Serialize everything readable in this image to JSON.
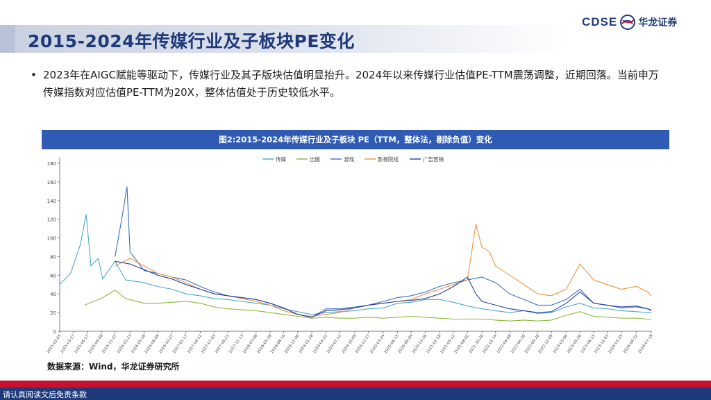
{
  "header": {
    "title": "2015-2024年传媒行业及子板块PE变化",
    "logo_en": "CDSE",
    "logo_cn": "华龙证券",
    "logo_icon": "globe-swirl-icon"
  },
  "bullet": {
    "marker": "•",
    "text": "2023年在AIGC赋能等驱动下，传媒行业及其子版块估值明显抬升。2024年以来传媒行业估值PE-TTM震荡调整，近期回落。当前申万传媒指数对应估值PE-TTM为20X，整体估值处于历史较低水平。"
  },
  "chart_title": "图2:2015-2024年传媒行业及子板块 PE（TTM，整体法，剔除负值）变化",
  "source": "数据来源：Wind，华龙证券研究所",
  "footer": {
    "disclaimer": "请认真阅读文后免责条款"
  },
  "colors": {
    "title": "#1f3a7a",
    "chart_header": "#2f5bb4",
    "footer_red": "#c8102e",
    "footer_blue": "#1f3a7a"
  },
  "chart_data": {
    "type": "line",
    "x_start": "2015-01-05",
    "x_end": "2024-07-19",
    "x_ticks": [
      "2015-01-05",
      "2015-03-27",
      "2015-06-17",
      "2015-09-08",
      "2015-11-27",
      "2016-02-23",
      "2016-05-16",
      "2016-08-04",
      "2016-10-27",
      "2017-01-17",
      "2017-04-12",
      "2017-07-03",
      "2017-09-21",
      "2017-12-13",
      "2018-03-06",
      "2018-05-28",
      "2018-08-16",
      "2018-11-06",
      "2019-01-28",
      "2019-04-22",
      "2019-07-12",
      "2019-10-09",
      "2019-12-27",
      "2020-03-24",
      "2020-06-15",
      "2020-09-04",
      "2020-11-26",
      "2021-02-18",
      "2021-05-12",
      "2021-08-02",
      "2021-10-26",
      "2022-01-14",
      "2022-04-08",
      "2022-06-30",
      "2022-09-20",
      "2022-12-09",
      "2023-03-06",
      "2023-05-26",
      "2023-08-15",
      "2023-11-03",
      "2024-01-25",
      "2024-04-22",
      "2024-07-19"
    ],
    "ylim": [
      0,
      180
    ],
    "y_ticks": [
      0,
      20,
      40,
      60,
      80,
      100,
      120,
      140,
      160,
      180
    ],
    "legend_position": "top",
    "grid": false,
    "series": [
      {
        "name": "传媒",
        "color": "#4aaac6",
        "points": [
          [
            "2015-01-05",
            50
          ],
          [
            "2015-03-10",
            62
          ],
          [
            "2015-05-05",
            92
          ],
          [
            "2015-06-10",
            125
          ],
          [
            "2015-07-08",
            70
          ],
          [
            "2015-08-20",
            78
          ],
          [
            "2015-09-15",
            56
          ],
          [
            "2015-11-27",
            75
          ],
          [
            "2016-01-28",
            55
          ],
          [
            "2016-05-16",
            52
          ],
          [
            "2016-08-04",
            48
          ],
          [
            "2016-10-27",
            45
          ],
          [
            "2017-01-17",
            40
          ],
          [
            "2017-04-12",
            38
          ],
          [
            "2017-07-03",
            35
          ],
          [
            "2017-09-21",
            34
          ],
          [
            "2017-12-13",
            32
          ],
          [
            "2018-03-06",
            30
          ],
          [
            "2018-05-28",
            28
          ],
          [
            "2018-08-16",
            24
          ],
          [
            "2018-11-06",
            21
          ],
          [
            "2019-01-28",
            18
          ],
          [
            "2019-04-22",
            20
          ],
          [
            "2019-07-12",
            21
          ],
          [
            "2019-10-09",
            22
          ],
          [
            "2019-12-27",
            24
          ],
          [
            "2020-03-24",
            25
          ],
          [
            "2020-06-15",
            30
          ],
          [
            "2020-09-04",
            31
          ],
          [
            "2020-11-26",
            34
          ],
          [
            "2021-02-18",
            34
          ],
          [
            "2021-05-12",
            31
          ],
          [
            "2021-08-02",
            27
          ],
          [
            "2021-10-26",
            24
          ],
          [
            "2022-01-14",
            22
          ],
          [
            "2022-04-08",
            20
          ],
          [
            "2022-06-30",
            22
          ],
          [
            "2022-09-20",
            19
          ],
          [
            "2022-12-09",
            20
          ],
          [
            "2023-03-06",
            26
          ],
          [
            "2023-05-26",
            30
          ],
          [
            "2023-08-15",
            25
          ],
          [
            "2023-11-03",
            24
          ],
          [
            "2024-01-25",
            22
          ],
          [
            "2024-04-22",
            21
          ],
          [
            "2024-06-28",
            20
          ],
          [
            "2024-07-19",
            20
          ]
        ]
      },
      {
        "name": "出版",
        "color": "#8cb83a",
        "points": [
          [
            "2015-06-01",
            28
          ],
          [
            "2015-09-15",
            36
          ],
          [
            "2015-11-27",
            44
          ],
          [
            "2016-01-28",
            35
          ],
          [
            "2016-05-16",
            30
          ],
          [
            "2016-08-04",
            30
          ],
          [
            "2016-10-27",
            31
          ],
          [
            "2017-01-17",
            32
          ],
          [
            "2017-04-12",
            30
          ],
          [
            "2017-07-03",
            26
          ],
          [
            "2017-09-21",
            24
          ],
          [
            "2017-12-13",
            23
          ],
          [
            "2018-03-06",
            22
          ],
          [
            "2018-05-28",
            20
          ],
          [
            "2018-08-16",
            18
          ],
          [
            "2018-11-06",
            16
          ],
          [
            "2019-01-28",
            14
          ],
          [
            "2019-04-22",
            15
          ],
          [
            "2019-07-12",
            14
          ],
          [
            "2019-10-09",
            14
          ],
          [
            "2019-12-27",
            15
          ],
          [
            "2020-03-24",
            14
          ],
          [
            "2020-06-15",
            15
          ],
          [
            "2020-09-04",
            16
          ],
          [
            "2020-11-26",
            15
          ],
          [
            "2021-02-18",
            14
          ],
          [
            "2021-05-12",
            13
          ],
          [
            "2021-08-02",
            13
          ],
          [
            "2021-10-26",
            13
          ],
          [
            "2022-01-14",
            12
          ],
          [
            "2022-04-08",
            11
          ],
          [
            "2022-06-30",
            12
          ],
          [
            "2022-09-20",
            11
          ],
          [
            "2022-12-09",
            12
          ],
          [
            "2023-03-06",
            17
          ],
          [
            "2023-05-26",
            21
          ],
          [
            "2023-08-15",
            16
          ],
          [
            "2023-11-03",
            15
          ],
          [
            "2024-01-25",
            14
          ],
          [
            "2024-04-22",
            14
          ],
          [
            "2024-06-28",
            13
          ],
          [
            "2024-07-19",
            13
          ]
        ]
      },
      {
        "name": "游戏",
        "color": "#3a6fc4",
        "points": [
          [
            "2015-11-27",
            80
          ],
          [
            "2016-01-10",
            125
          ],
          [
            "2016-02-05",
            155
          ],
          [
            "2016-02-23",
            85
          ],
          [
            "2016-05-16",
            65
          ],
          [
            "2016-08-04",
            62
          ],
          [
            "2016-10-27",
            58
          ],
          [
            "2017-01-17",
            55
          ],
          [
            "2017-04-12",
            48
          ],
          [
            "2017-07-03",
            42
          ],
          [
            "2017-09-21",
            38
          ],
          [
            "2017-12-13",
            36
          ],
          [
            "2018-03-06",
            34
          ],
          [
            "2018-05-28",
            30
          ],
          [
            "2018-08-16",
            25
          ],
          [
            "2018-11-06",
            18
          ],
          [
            "2019-01-28",
            15
          ],
          [
            "2019-04-22",
            24
          ],
          [
            "2019-07-12",
            24
          ],
          [
            "2019-10-09",
            26
          ],
          [
            "2019-12-27",
            28
          ],
          [
            "2020-03-24",
            32
          ],
          [
            "2020-06-15",
            36
          ],
          [
            "2020-09-04",
            38
          ],
          [
            "2020-11-26",
            42
          ],
          [
            "2021-02-18",
            48
          ],
          [
            "2021-05-12",
            52
          ],
          [
            "2021-08-02",
            55
          ],
          [
            "2021-10-26",
            58
          ],
          [
            "2022-01-14",
            52
          ],
          [
            "2022-04-08",
            40
          ],
          [
            "2022-06-30",
            34
          ],
          [
            "2022-09-20",
            28
          ],
          [
            "2022-12-09",
            28
          ],
          [
            "2023-03-06",
            34
          ],
          [
            "2023-05-26",
            45
          ],
          [
            "2023-08-15",
            30
          ],
          [
            "2023-11-03",
            28
          ],
          [
            "2024-01-25",
            25
          ],
          [
            "2024-04-22",
            26
          ],
          [
            "2024-06-28",
            24
          ],
          [
            "2024-07-19",
            23
          ]
        ]
      },
      {
        "name": "影视院线",
        "color": "#f0923a",
        "points": [
          [
            "2015-11-27",
            70
          ],
          [
            "2016-02-23",
            78
          ],
          [
            "2016-05-16",
            70
          ],
          [
            "2016-08-04",
            62
          ],
          [
            "2016-10-27",
            58
          ],
          [
            "2017-01-17",
            52
          ],
          [
            "2017-04-12",
            45
          ],
          [
            "2017-07-03",
            40
          ],
          [
            "2017-09-21",
            38
          ],
          [
            "2017-12-13",
            35
          ],
          [
            "2018-03-06",
            32
          ],
          [
            "2018-05-28",
            28
          ],
          [
            "2018-08-16",
            22
          ],
          [
            "2018-11-06",
            18
          ],
          [
            "2019-01-28",
            16
          ],
          [
            "2019-04-22",
            18
          ],
          [
            "2019-07-12",
            20
          ],
          [
            "2019-10-09",
            25
          ],
          [
            "2019-12-27",
            28
          ],
          [
            "2020-03-24",
            30
          ],
          [
            "2020-06-15",
            32
          ],
          [
            "2020-09-04",
            34
          ],
          [
            "2020-11-26",
            40
          ],
          [
            "2021-02-18",
            45
          ],
          [
            "2021-05-12",
            50
          ],
          [
            "2021-08-02",
            55
          ],
          [
            "2021-09-20",
            115
          ],
          [
            "2021-10-26",
            90
          ],
          [
            "2021-12-10",
            85
          ],
          [
            "2022-01-14",
            70
          ],
          [
            "2022-04-08",
            60
          ],
          [
            "2022-06-30",
            50
          ],
          [
            "2022-09-20",
            40
          ],
          [
            "2022-12-09",
            38
          ],
          [
            "2023-03-06",
            45
          ],
          [
            "2023-05-26",
            72
          ],
          [
            "2023-08-15",
            55
          ],
          [
            "2023-11-03",
            50
          ],
          [
            "2024-01-25",
            45
          ],
          [
            "2024-04-22",
            48
          ],
          [
            "2024-06-28",
            42
          ],
          [
            "2024-07-19",
            38
          ]
        ]
      },
      {
        "name": "广告营销",
        "color": "#2b3f9e",
        "points": [
          [
            "2015-11-27",
            75
          ],
          [
            "2016-02-23",
            72
          ],
          [
            "2016-05-16",
            66
          ],
          [
            "2016-08-04",
            60
          ],
          [
            "2016-10-27",
            56
          ],
          [
            "2017-01-17",
            50
          ],
          [
            "2017-04-12",
            45
          ],
          [
            "2017-07-03",
            40
          ],
          [
            "2017-09-21",
            38
          ],
          [
            "2017-12-13",
            36
          ],
          [
            "2018-03-06",
            34
          ],
          [
            "2018-05-28",
            30
          ],
          [
            "2018-08-16",
            25
          ],
          [
            "2018-11-06",
            18
          ],
          [
            "2019-01-28",
            15
          ],
          [
            "2019-04-22",
            22
          ],
          [
            "2019-07-12",
            23
          ],
          [
            "2019-10-09",
            25
          ],
          [
            "2019-12-27",
            28
          ],
          [
            "2020-03-24",
            30
          ],
          [
            "2020-06-15",
            32
          ],
          [
            "2020-09-04",
            33
          ],
          [
            "2020-11-26",
            35
          ],
          [
            "2021-02-18",
            40
          ],
          [
            "2021-05-12",
            48
          ],
          [
            "2021-08-02",
            58
          ],
          [
            "2021-09-20",
            40
          ],
          [
            "2021-10-26",
            32
          ],
          [
            "2022-01-14",
            28
          ],
          [
            "2022-04-08",
            24
          ],
          [
            "2022-06-30",
            22
          ],
          [
            "2022-09-20",
            20
          ],
          [
            "2022-12-09",
            21
          ],
          [
            "2023-03-06",
            30
          ],
          [
            "2023-05-26",
            42
          ],
          [
            "2023-08-15",
            30
          ],
          [
            "2023-11-03",
            28
          ],
          [
            "2024-01-25",
            26
          ],
          [
            "2024-04-22",
            27
          ],
          [
            "2024-06-28",
            24
          ],
          [
            "2024-07-19",
            22
          ]
        ]
      }
    ]
  }
}
